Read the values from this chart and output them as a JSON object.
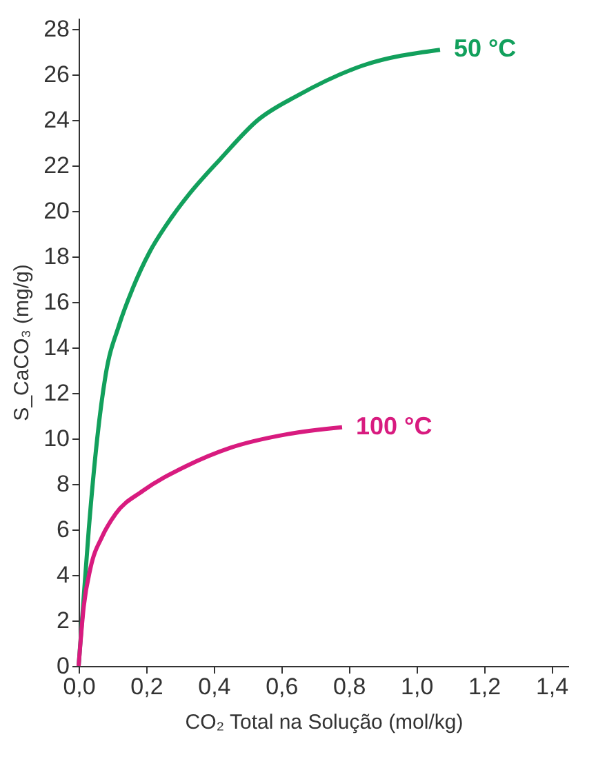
{
  "chart_data": {
    "type": "line",
    "xlabel": "CO₂ Total na Solução (mol/kg)",
    "ylabel": "S_CaCO₃ (mg/g)",
    "xlim": [
      0,
      1.45
    ],
    "ylim": [
      0,
      28.5
    ],
    "xticks": [
      {
        "value": 0,
        "label": "0,0"
      },
      {
        "value": 0.2,
        "label": "0,2"
      },
      {
        "value": 0.4,
        "label": "0,4"
      },
      {
        "value": 0.6,
        "label": "0,6"
      },
      {
        "value": 0.8,
        "label": "0,8"
      },
      {
        "value": 1.0,
        "label": "1,0"
      },
      {
        "value": 1.2,
        "label": "1,2"
      },
      {
        "value": 1.4,
        "label": "1,4"
      }
    ],
    "yticks": [
      0,
      2,
      4,
      6,
      8,
      10,
      12,
      14,
      16,
      18,
      20,
      22,
      24,
      26,
      28
    ],
    "grid": false,
    "legend": false,
    "marker": "none",
    "line_style": "solid",
    "series": [
      {
        "name": "50 °C",
        "color": "#12a05c",
        "x": [
          0,
          0.01,
          0.03,
          0.055,
          0.08,
          0.12,
          0.16,
          0.21,
          0.26,
          0.33,
          0.42,
          0.53,
          0.65,
          0.84,
          1.07
        ],
        "values": [
          0,
          2,
          6,
          10,
          12.8,
          15,
          16.6,
          18.2,
          19.4,
          20.8,
          22.3,
          24.0,
          25.1,
          26.4,
          27.1
        ]
      },
      {
        "name": "100 °C",
        "color": "#d81b7f",
        "x": [
          0,
          0.015,
          0.035,
          0.07,
          0.11,
          0.19,
          0.32,
          0.45,
          0.62,
          0.78
        ],
        "values": [
          0,
          2.6,
          4.3,
          5.7,
          6.7,
          7.7,
          8.8,
          9.6,
          10.2,
          10.5
        ]
      }
    ]
  }
}
